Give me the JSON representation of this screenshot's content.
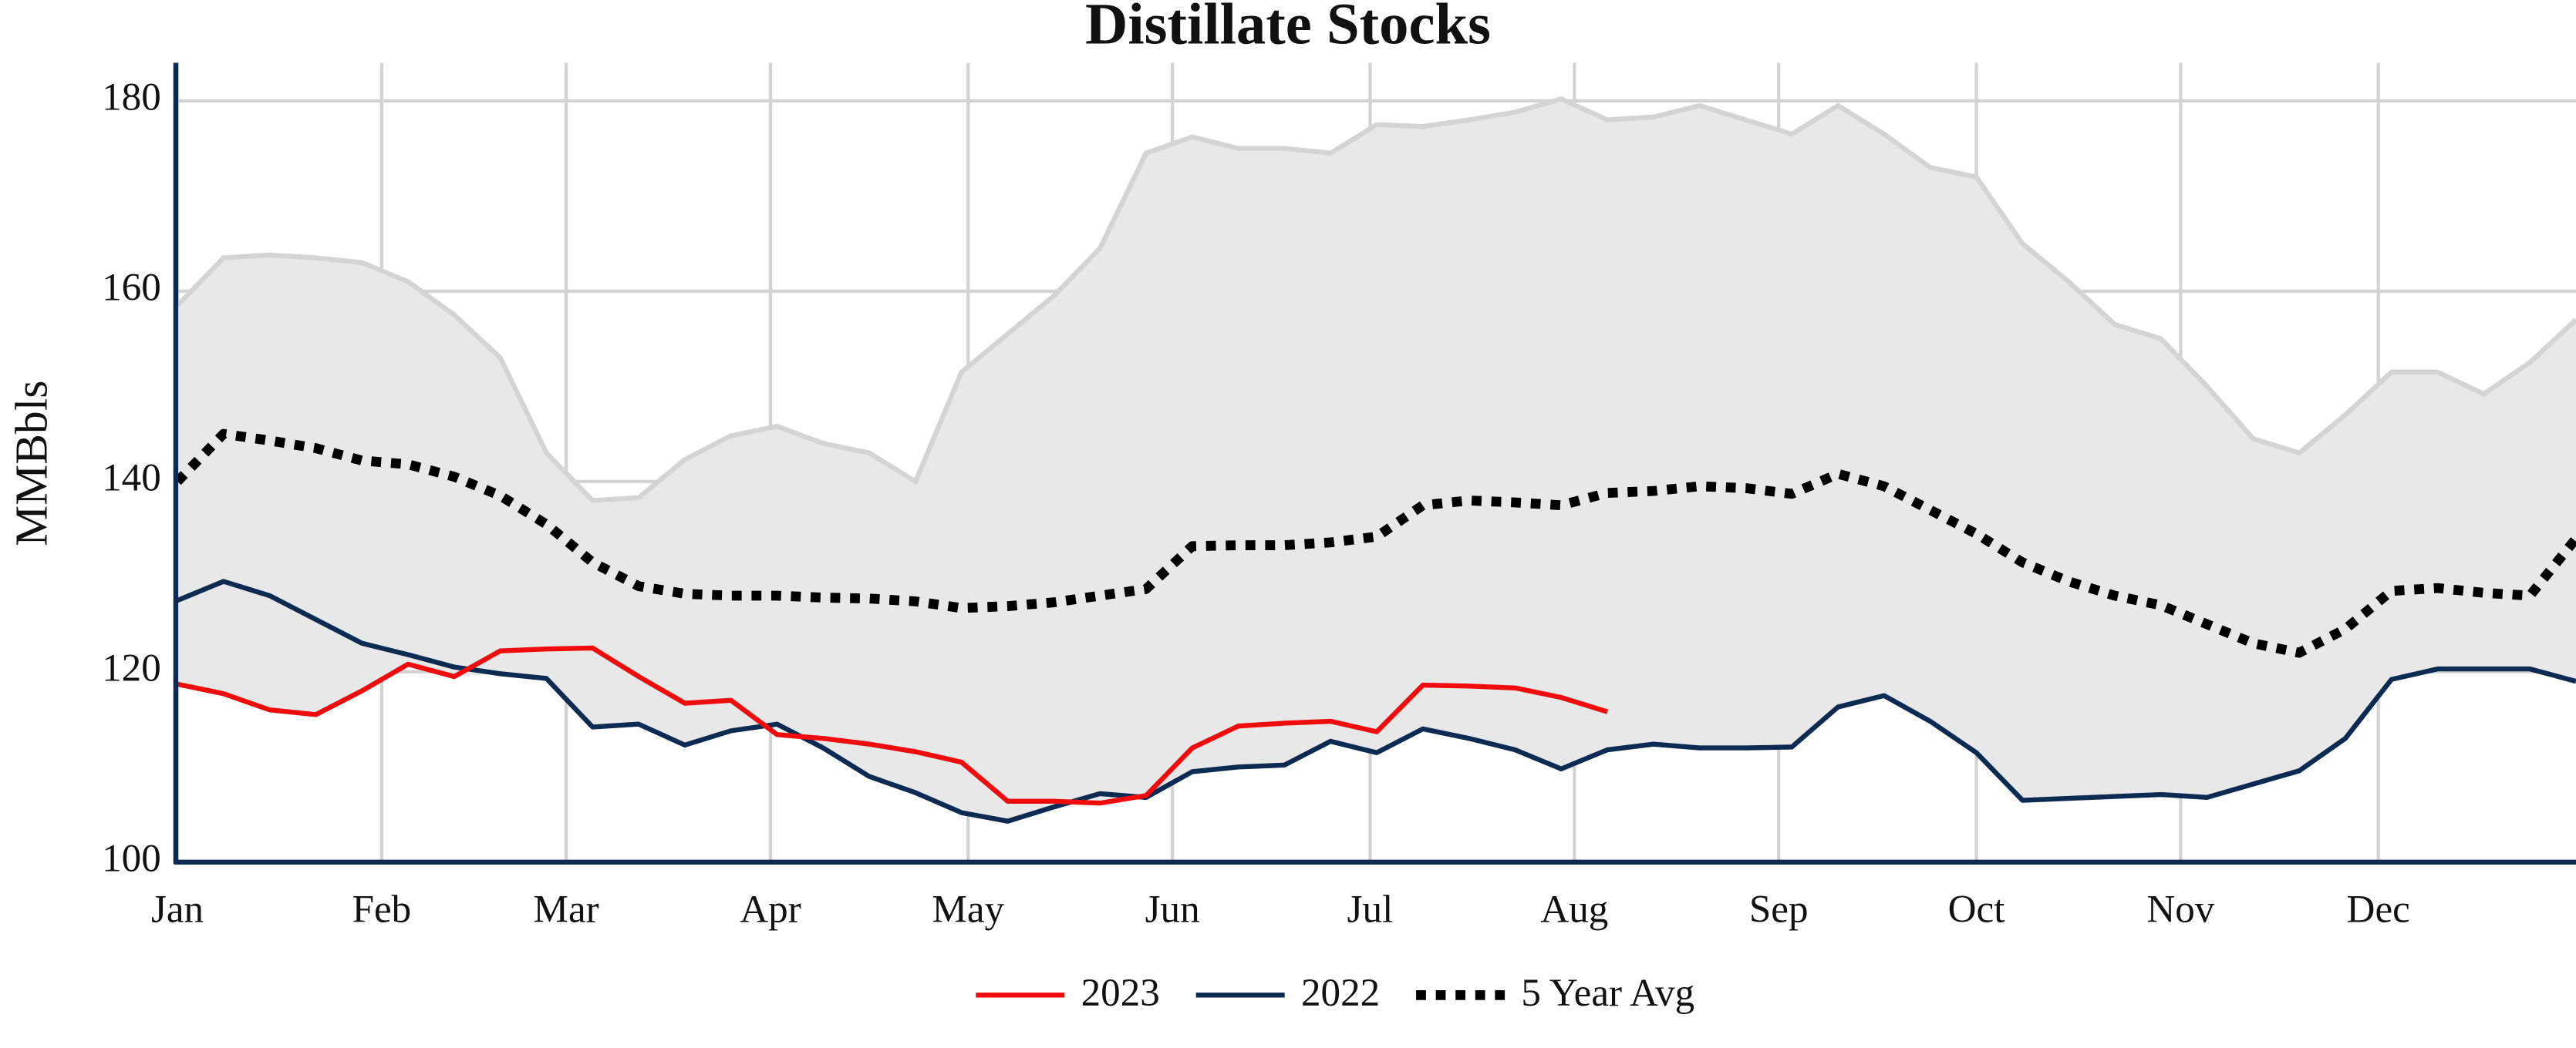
{
  "chart_data": {
    "type": "line",
    "title": "Distillate Stocks",
    "y_label": "MMBbls",
    "x": [
      0,
      7,
      14,
      21,
      28,
      35,
      42,
      49,
      56,
      63,
      70,
      77,
      84,
      91,
      98,
      105,
      112,
      119,
      126,
      133,
      140,
      147,
      154,
      161,
      168,
      175,
      182,
      189,
      196,
      203,
      210,
      217,
      224,
      231,
      238,
      245,
      252,
      259,
      266,
      273,
      280,
      287,
      294,
      301,
      308,
      315,
      322,
      329,
      336,
      343,
      350,
      357,
      364
    ],
    "xlim": [
      0,
      364
    ],
    "xticks": [
      {
        "value": 0,
        "label": "Jan"
      },
      {
        "value": 31,
        "label": "Feb"
      },
      {
        "value": 59,
        "label": "Mar"
      },
      {
        "value": 90,
        "label": "Apr"
      },
      {
        "value": 120,
        "label": "May"
      },
      {
        "value": 151,
        "label": "Jun"
      },
      {
        "value": 181,
        "label": "Jul"
      },
      {
        "value": 212,
        "label": "Aug"
      },
      {
        "value": 243,
        "label": "Sep"
      },
      {
        "value": 273,
        "label": "Oct"
      },
      {
        "value": 304,
        "label": "Nov"
      },
      {
        "value": 334,
        "label": "Dec"
      }
    ],
    "ylim": [
      100,
      184
    ],
    "yticks": [
      100,
      120,
      140,
      160,
      180
    ],
    "grid": true,
    "band": {
      "color": "#e8e8e8",
      "edge_color": "#d4d4d4",
      "high": [
        158.5,
        163.5,
        163.8,
        163.5,
        163,
        161,
        157.5,
        153,
        143,
        138,
        138.3,
        142.3,
        144.8,
        145.8,
        144,
        143,
        140,
        151.5,
        155.5,
        159.5,
        164.5,
        174.5,
        176.2,
        175,
        175,
        174.5,
        177.5,
        177.3,
        178,
        178.8,
        180.2,
        178,
        178.3,
        179.5,
        178,
        176.5,
        179.5,
        176.5,
        173,
        172,
        165,
        161,
        156.5,
        155,
        150,
        144.5,
        143,
        147,
        151.5,
        151.5,
        149.2,
        152.5,
        157
      ],
      "low": [
        118.7,
        117.7,
        116,
        115.5,
        118,
        120.8,
        119.5,
        119.8,
        119.3,
        114.2,
        114.5,
        112.3,
        113.8,
        114.5,
        112,
        109,
        107.3,
        105.2,
        104.3,
        105.8,
        106.2,
        106.8,
        109.5,
        110,
        110.2,
        112.7,
        111.5,
        114,
        113,
        111.8,
        109.8,
        111.8,
        112.4,
        112,
        112,
        112.1,
        116.3,
        117.5,
        114.8,
        111.5,
        106.5,
        106.7,
        106.9,
        107.1,
        106.8,
        108.2,
        109.6,
        113,
        119.2,
        120.3,
        120.3,
        120.3,
        119
      ]
    },
    "series": [
      {
        "name": "2023",
        "color": "#f00c0c",
        "style": "solid",
        "values": [
          118.7,
          117.7,
          116,
          115.5,
          118,
          120.8,
          119.5,
          122.2,
          122.4,
          122.5,
          119.5,
          116.7,
          117,
          113.4,
          113,
          112.4,
          111.6,
          110.5,
          106.4,
          106.4,
          106.2,
          107,
          112,
          114.3,
          114.6,
          114.8,
          113.7,
          118.6,
          118.5,
          118.3,
          117.3,
          115.8,
          null,
          null,
          null,
          null,
          null,
          null,
          null,
          null,
          null,
          null,
          null,
          null,
          null,
          null,
          null,
          null,
          null,
          null,
          null,
          null,
          null
        ]
      },
      {
        "name": "2022",
        "color": "#0c2a52",
        "style": "solid",
        "values": [
          127.5,
          129.5,
          128,
          125.5,
          123,
          121.8,
          120.5,
          119.8,
          119.3,
          114.2,
          114.5,
          112.3,
          113.8,
          114.5,
          112,
          109,
          107.3,
          105.2,
          104.3,
          105.8,
          107.2,
          106.8,
          109.5,
          110,
          110.2,
          112.7,
          111.5,
          114,
          113,
          111.8,
          109.8,
          111.8,
          112.4,
          112,
          112,
          112.1,
          116.3,
          117.5,
          114.8,
          111.5,
          106.5,
          106.7,
          106.9,
          107.1,
          106.8,
          108.2,
          109.6,
          113,
          119.2,
          120.3,
          120.3,
          120.3,
          119
        ]
      },
      {
        "name": "5 Year Avg",
        "color": "#000000",
        "style": "dotted",
        "values": [
          140,
          145,
          144.3,
          143.5,
          142.2,
          141.8,
          140.5,
          138.5,
          135.5,
          131.5,
          129,
          128.2,
          128,
          128,
          127.8,
          127.7,
          127.4,
          126.7,
          126.9,
          127.3,
          128,
          128.7,
          133.2,
          133.3,
          133.3,
          133.6,
          134.2,
          137.5,
          138,
          137.8,
          137.5,
          138.8,
          139,
          139.5,
          139.3,
          138.7,
          140.8,
          139.5,
          137,
          134.5,
          131.5,
          129.5,
          128,
          127,
          125,
          123,
          122,
          124.5,
          128.5,
          128.8,
          128.3,
          128,
          134
        ]
      }
    ]
  }
}
